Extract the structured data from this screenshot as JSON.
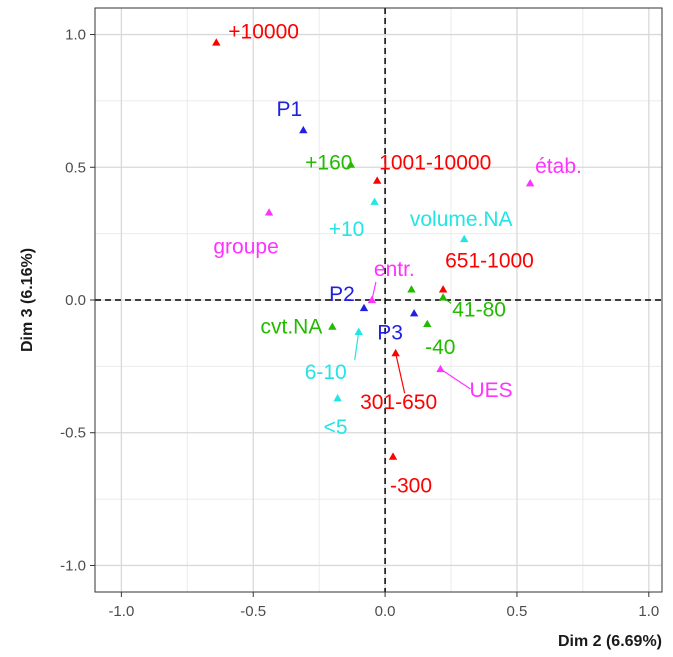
{
  "chart_data": {
    "type": "scatter",
    "xlabel": "Dim 2 (6.69%)",
    "ylabel": "Dim 3 (6.16%)",
    "xlim": [
      -1.1,
      1.05
    ],
    "ylim": [
      -1.1,
      1.1
    ],
    "xticks": [
      -1.0,
      -0.5,
      0.0,
      0.5,
      1.0
    ],
    "yticks": [
      1.0,
      0.5,
      0.0,
      -0.5,
      -1.0
    ],
    "xtick_labels": [
      "-1.0",
      "-0.5",
      "0.0",
      "0.5",
      "1.0"
    ],
    "ytick_labels": [
      "1.0",
      "0.5",
      "0.0",
      "-0.5",
      "-1.0"
    ],
    "grid": true,
    "reference_lines": {
      "x": 0,
      "y": 0,
      "style": "dashed"
    },
    "colors": {
      "red": "#ff0000",
      "blue": "#2020e0",
      "green": "#22bb00",
      "cyan": "#22e5e5",
      "magenta": "#ff33ff"
    },
    "points": [
      {
        "label": "+10000",
        "x": -0.64,
        "y": 0.97,
        "color": "red"
      },
      {
        "label": "1001-10000",
        "x": -0.03,
        "y": 0.45,
        "color": "red"
      },
      {
        "label": "651-1000",
        "x": 0.22,
        "y": 0.04,
        "color": "red"
      },
      {
        "label": "301-650",
        "x": 0.04,
        "y": -0.2,
        "color": "red"
      },
      {
        "label": "-300",
        "x": 0.03,
        "y": -0.59,
        "color": "red"
      },
      {
        "label": "P1",
        "x": -0.31,
        "y": 0.64,
        "color": "blue"
      },
      {
        "label": "P2",
        "x": -0.08,
        "y": -0.03,
        "color": "blue"
      },
      {
        "label": "P3",
        "x": 0.11,
        "y": -0.05,
        "color": "blue"
      },
      {
        "label": "+160",
        "x": -0.13,
        "y": 0.51,
        "color": "green"
      },
      {
        "label": "cvt.NA",
        "x": -0.2,
        "y": -0.1,
        "color": "green"
      },
      {
        "label": "41-80",
        "x": 0.22,
        "y": 0.01,
        "color": "green"
      },
      {
        "label": "-40",
        "x": 0.16,
        "y": -0.09,
        "color": "green"
      },
      {
        "label": "",
        "x": 0.1,
        "y": 0.04,
        "color": "green"
      },
      {
        "label": "+10",
        "x": -0.04,
        "y": 0.37,
        "color": "cyan"
      },
      {
        "label": "volume.NA",
        "x": 0.3,
        "y": 0.23,
        "color": "cyan"
      },
      {
        "label": "6-10",
        "x": -0.1,
        "y": -0.12,
        "color": "cyan"
      },
      {
        "label": "<5",
        "x": -0.18,
        "y": -0.37,
        "color": "cyan"
      },
      {
        "label": "groupe",
        "x": -0.44,
        "y": 0.33,
        "color": "magenta"
      },
      {
        "label": "entr.",
        "x": -0.05,
        "y": 0.0,
        "color": "magenta"
      },
      {
        "label": "étab.",
        "x": 0.55,
        "y": 0.44,
        "color": "magenta"
      },
      {
        "label": "UES",
        "x": 0.21,
        "y": -0.26,
        "color": "magenta"
      }
    ]
  }
}
